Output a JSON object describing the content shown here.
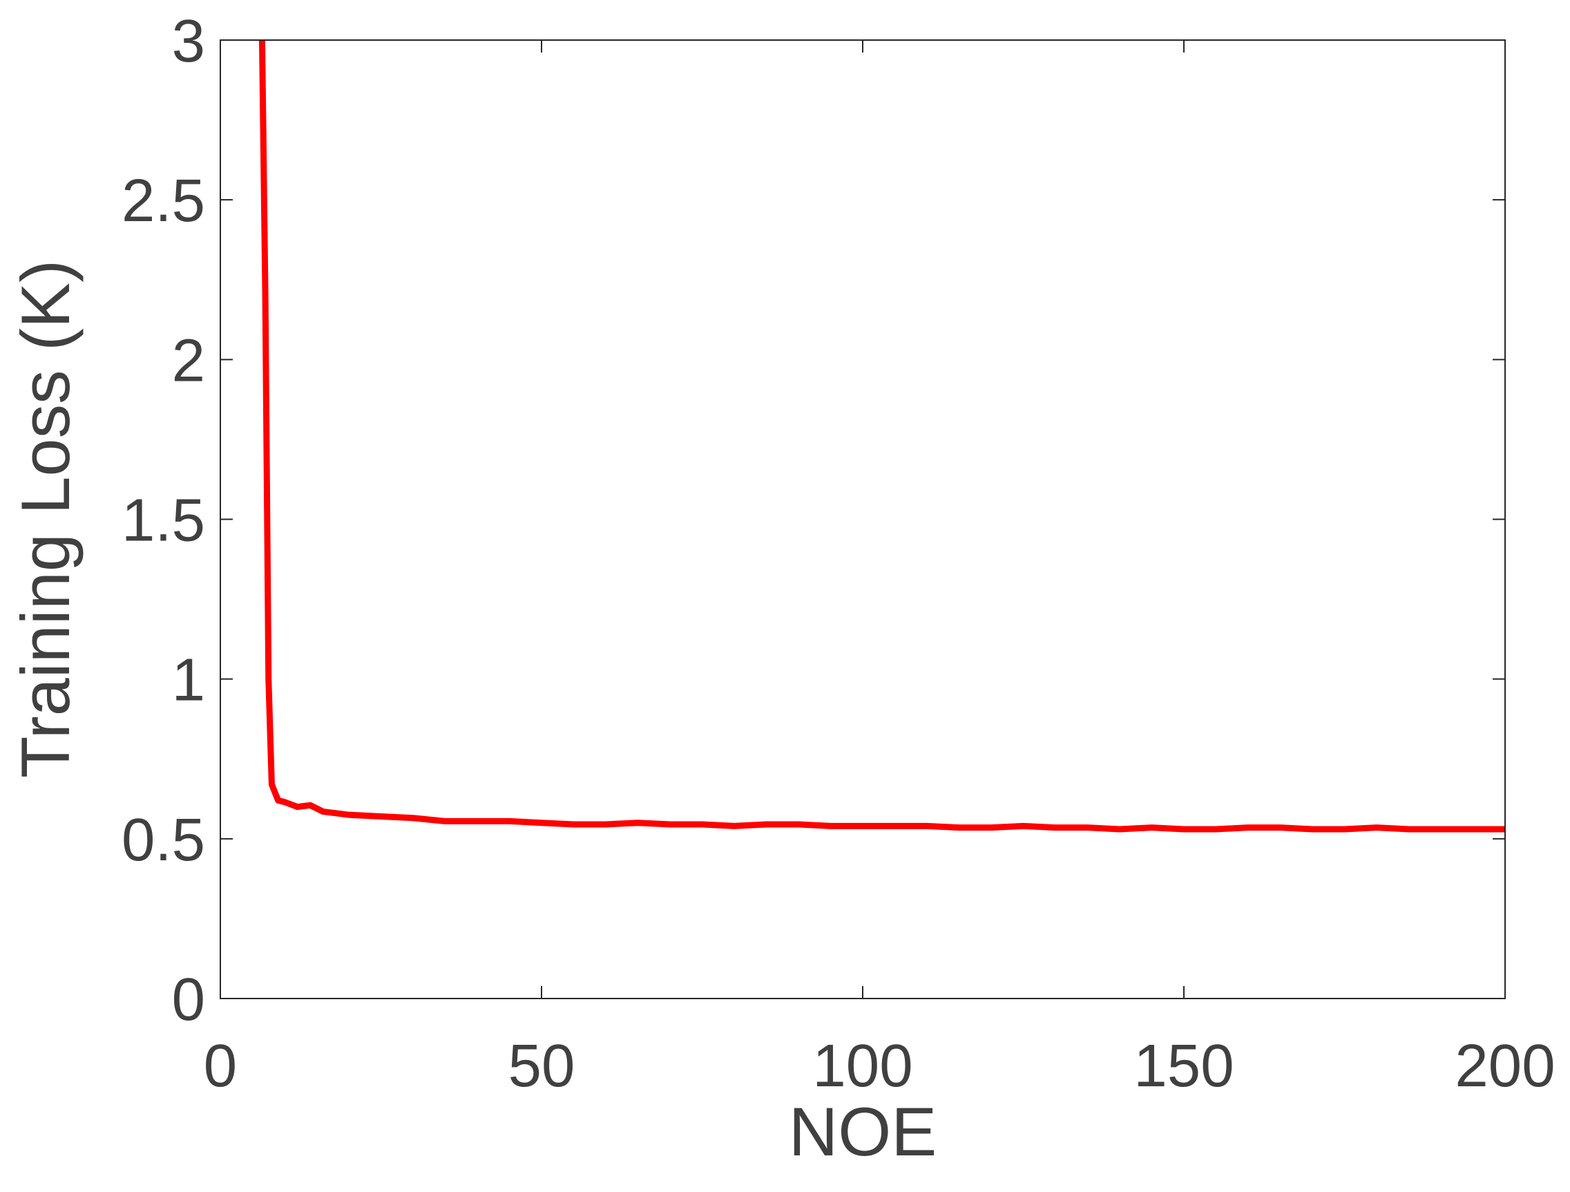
{
  "chart_data": {
    "type": "line",
    "xlabel": "NOE",
    "ylabel": "Training Loss (K)",
    "xlim": [
      0,
      200
    ],
    "xticks": [
      0,
      50,
      100,
      150,
      200
    ],
    "ylim": [
      0,
      3
    ],
    "yticks": [
      0,
      0.5,
      1,
      {
        "value": 1.5,
        "label": "1.5"
      },
      2,
      2.5,
      3
    ],
    "series": [
      {
        "color": "#ff0000",
        "x": [
          6.5,
          7,
          7.5,
          8,
          9,
          10,
          12,
          14,
          16,
          18,
          20,
          25,
          30,
          35,
          40,
          45,
          50,
          55,
          60,
          65,
          70,
          75,
          80,
          85,
          90,
          95,
          100,
          105,
          110,
          115,
          120,
          125,
          130,
          135,
          140,
          145,
          150,
          155,
          160,
          165,
          170,
          175,
          180,
          185,
          190,
          195,
          200
        ],
        "values": [
          3.0,
          2.2,
          1.0,
          0.67,
          0.62,
          0.615,
          0.6,
          0.605,
          0.585,
          0.58,
          0.575,
          0.57,
          0.565,
          0.555,
          0.555,
          0.555,
          0.55,
          0.545,
          0.545,
          0.55,
          0.545,
          0.545,
          0.54,
          0.545,
          0.545,
          0.54,
          0.54,
          0.54,
          0.54,
          0.535,
          0.535,
          0.54,
          0.535,
          0.535,
          0.53,
          0.535,
          0.53,
          0.53,
          0.535,
          0.535,
          0.53,
          0.53,
          0.535,
          0.53,
          0.53,
          0.53,
          0.53
        ]
      }
    ]
  }
}
